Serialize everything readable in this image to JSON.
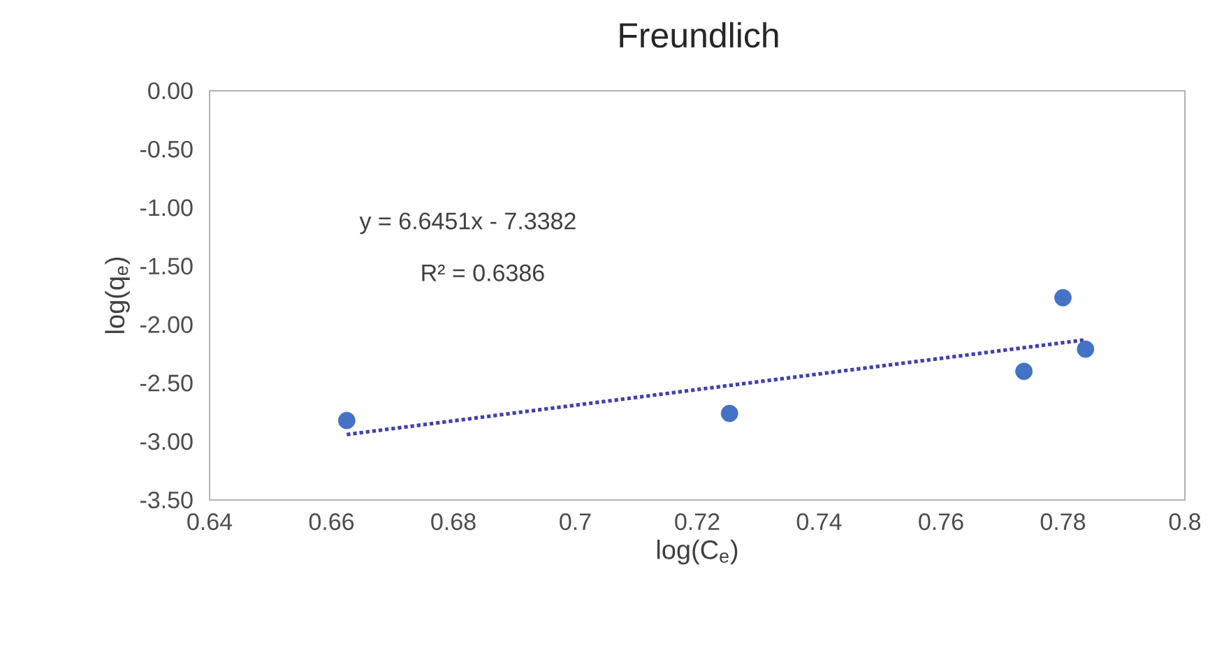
{
  "chart_data": {
    "type": "scatter",
    "title": "Freundlich",
    "xlabel": "log(C$_{e}$)",
    "ylabel": "log(q$_{e}$)",
    "annotations": [
      "y = 6.6451x - 7.3382",
      "R² = 0.6386"
    ],
    "series": [
      {
        "color": "#4472c4",
        "marker": "circle",
        "x": [
          0.6625,
          0.7253,
          0.7736,
          0.78,
          0.7837
        ],
        "values": [
          -2.82,
          -2.76,
          -2.4,
          -1.77,
          -2.21
        ]
      },
      {
        "type": "line",
        "color": "#4040b0",
        "marker": "none",
        "line_style": "dotted",
        "x": [
          0.6625,
          0.7837
        ],
        "values": [
          -2.94,
          -2.13
        ]
      }
    ],
    "xlim": [
      0.64,
      0.8
    ],
    "ylim": [
      -3.5,
      0.0
    ],
    "xticks": [
      0.64,
      0.66,
      0.68,
      0.7,
      0.72,
      0.74,
      0.76,
      0.78,
      0.8
    ],
    "yticks": [
      {
        "value": 0,
        "label": "0.00"
      },
      {
        "value": -0.5,
        "label": "-0.50"
      },
      {
        "value": -1,
        "label": "-1.00"
      },
      {
        "value": -1.5,
        "label": "-1.50"
      },
      {
        "value": -2,
        "label": "-2.00"
      },
      {
        "value": -2.5,
        "label": "-2.50"
      },
      {
        "value": -3,
        "label": "-3.00"
      },
      {
        "value": -3.5,
        "label": "-3.50"
      }
    ],
    "grid": false
  }
}
